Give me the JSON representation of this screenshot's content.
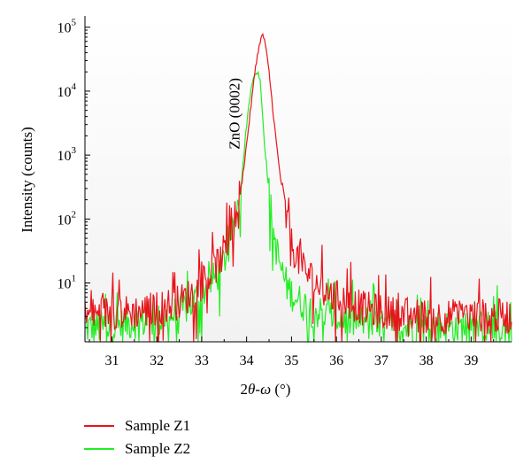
{
  "chart_data": {
    "type": "line",
    "title": "",
    "xlabel_parts": [
      "2",
      "θ",
      "-",
      "ω",
      " (°)"
    ],
    "ylabel": "Intensity (counts)",
    "xlim": [
      30.4,
      39.9
    ],
    "ylim": [
      1.2,
      150000
    ],
    "y_scale": "log",
    "x_ticks": [
      31,
      32,
      33,
      34,
      35,
      36,
      37,
      38,
      39
    ],
    "y_ticks": [
      {
        "value": 10,
        "base": "10",
        "exp": "1"
      },
      {
        "value": 100,
        "base": "10",
        "exp": "2"
      },
      {
        "value": 1000,
        "base": "10",
        "exp": "3"
      },
      {
        "value": 10000,
        "base": "10",
        "exp": "4"
      },
      {
        "value": 100000,
        "base": "10",
        "exp": "5"
      }
    ],
    "annotation": {
      "text": "ZnO (0002)",
      "x": 34.0,
      "y": 900
    },
    "legend_position": "bottom-left",
    "grid": false,
    "series": [
      {
        "name": "Sample Z1",
        "color": "#e8141c",
        "x": [
          30.4,
          31.0,
          31.5,
          32.0,
          32.5,
          32.8,
          33.0,
          33.2,
          33.4,
          33.6,
          33.8,
          33.9,
          34.0,
          34.1,
          34.2,
          34.3,
          34.35,
          34.4,
          34.5,
          34.6,
          34.7,
          34.8,
          34.9,
          35.0,
          35.2,
          35.4,
          35.6,
          35.8,
          36.0,
          36.3,
          36.6,
          37.0,
          37.5,
          38.0,
          38.5,
          39.0,
          39.9
        ],
        "y": [
          3,
          3.5,
          3.5,
          4,
          5,
          7,
          10,
          14,
          22,
          45,
          150,
          400,
          1500,
          6000,
          25000,
          60000,
          75000,
          65000,
          20000,
          4000,
          900,
          250,
          80,
          40,
          20,
          13,
          9,
          7,
          6,
          5,
          4,
          3.5,
          3.2,
          3,
          3,
          3,
          3
        ]
      },
      {
        "name": "Sample Z2",
        "color": "#22ee22",
        "x": [
          30.4,
          31.0,
          31.5,
          32.0,
          32.5,
          32.8,
          33.0,
          33.2,
          33.4,
          33.6,
          33.8,
          33.9,
          34.0,
          34.1,
          34.2,
          34.25,
          34.3,
          34.4,
          34.5,
          34.6,
          34.7,
          34.8,
          34.9,
          35.0,
          35.2,
          35.4,
          35.6,
          35.8,
          36.0,
          36.3,
          36.6,
          37.0,
          37.5,
          38.0,
          38.5,
          39.0,
          39.9
        ],
        "y": [
          2,
          2,
          2.5,
          2.5,
          3.5,
          5,
          7,
          10,
          15,
          35,
          120,
          500,
          3000,
          12000,
          19000,
          19500,
          16000,
          1500,
          250,
          60,
          25,
          14,
          9,
          7,
          5,
          4,
          3.5,
          3,
          3,
          2.5,
          2.5,
          2,
          2,
          2,
          2,
          2,
          2
        ]
      }
    ]
  }
}
